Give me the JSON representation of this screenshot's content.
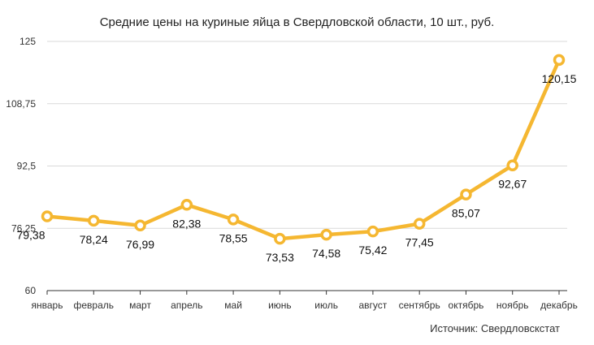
{
  "chart_data": {
    "type": "line",
    "title": "Средние цены на куриные яйца в Свердловской области, 10 шт., руб.",
    "source": "Источник: Свердловскстат",
    "categories": [
      "январь",
      "февраль",
      "март",
      "апрель",
      "май",
      "июнь",
      "июль",
      "август",
      "сентябрь",
      "октябрь",
      "ноябрь",
      "декабрь"
    ],
    "values": [
      79.38,
      78.24,
      76.99,
      82.38,
      78.55,
      73.53,
      74.58,
      75.42,
      77.45,
      85.07,
      92.67,
      120.15
    ],
    "value_labels": [
      "79,38",
      "78,24",
      "76,99",
      "82,38",
      "78,55",
      "73,53",
      "74,58",
      "75,42",
      "77,45",
      "85,07",
      "92,67",
      "120,15"
    ],
    "yticks": [
      60,
      76.25,
      92.5,
      108.75,
      125
    ],
    "ytick_labels": [
      "60",
      "76,25",
      "92,5",
      "108,75",
      "125"
    ],
    "ylim": [
      60,
      125
    ],
    "grid": true,
    "line_color": "#F5B731",
    "marker_fill": "#ffffff",
    "grid_color": "#d9d9d9"
  }
}
